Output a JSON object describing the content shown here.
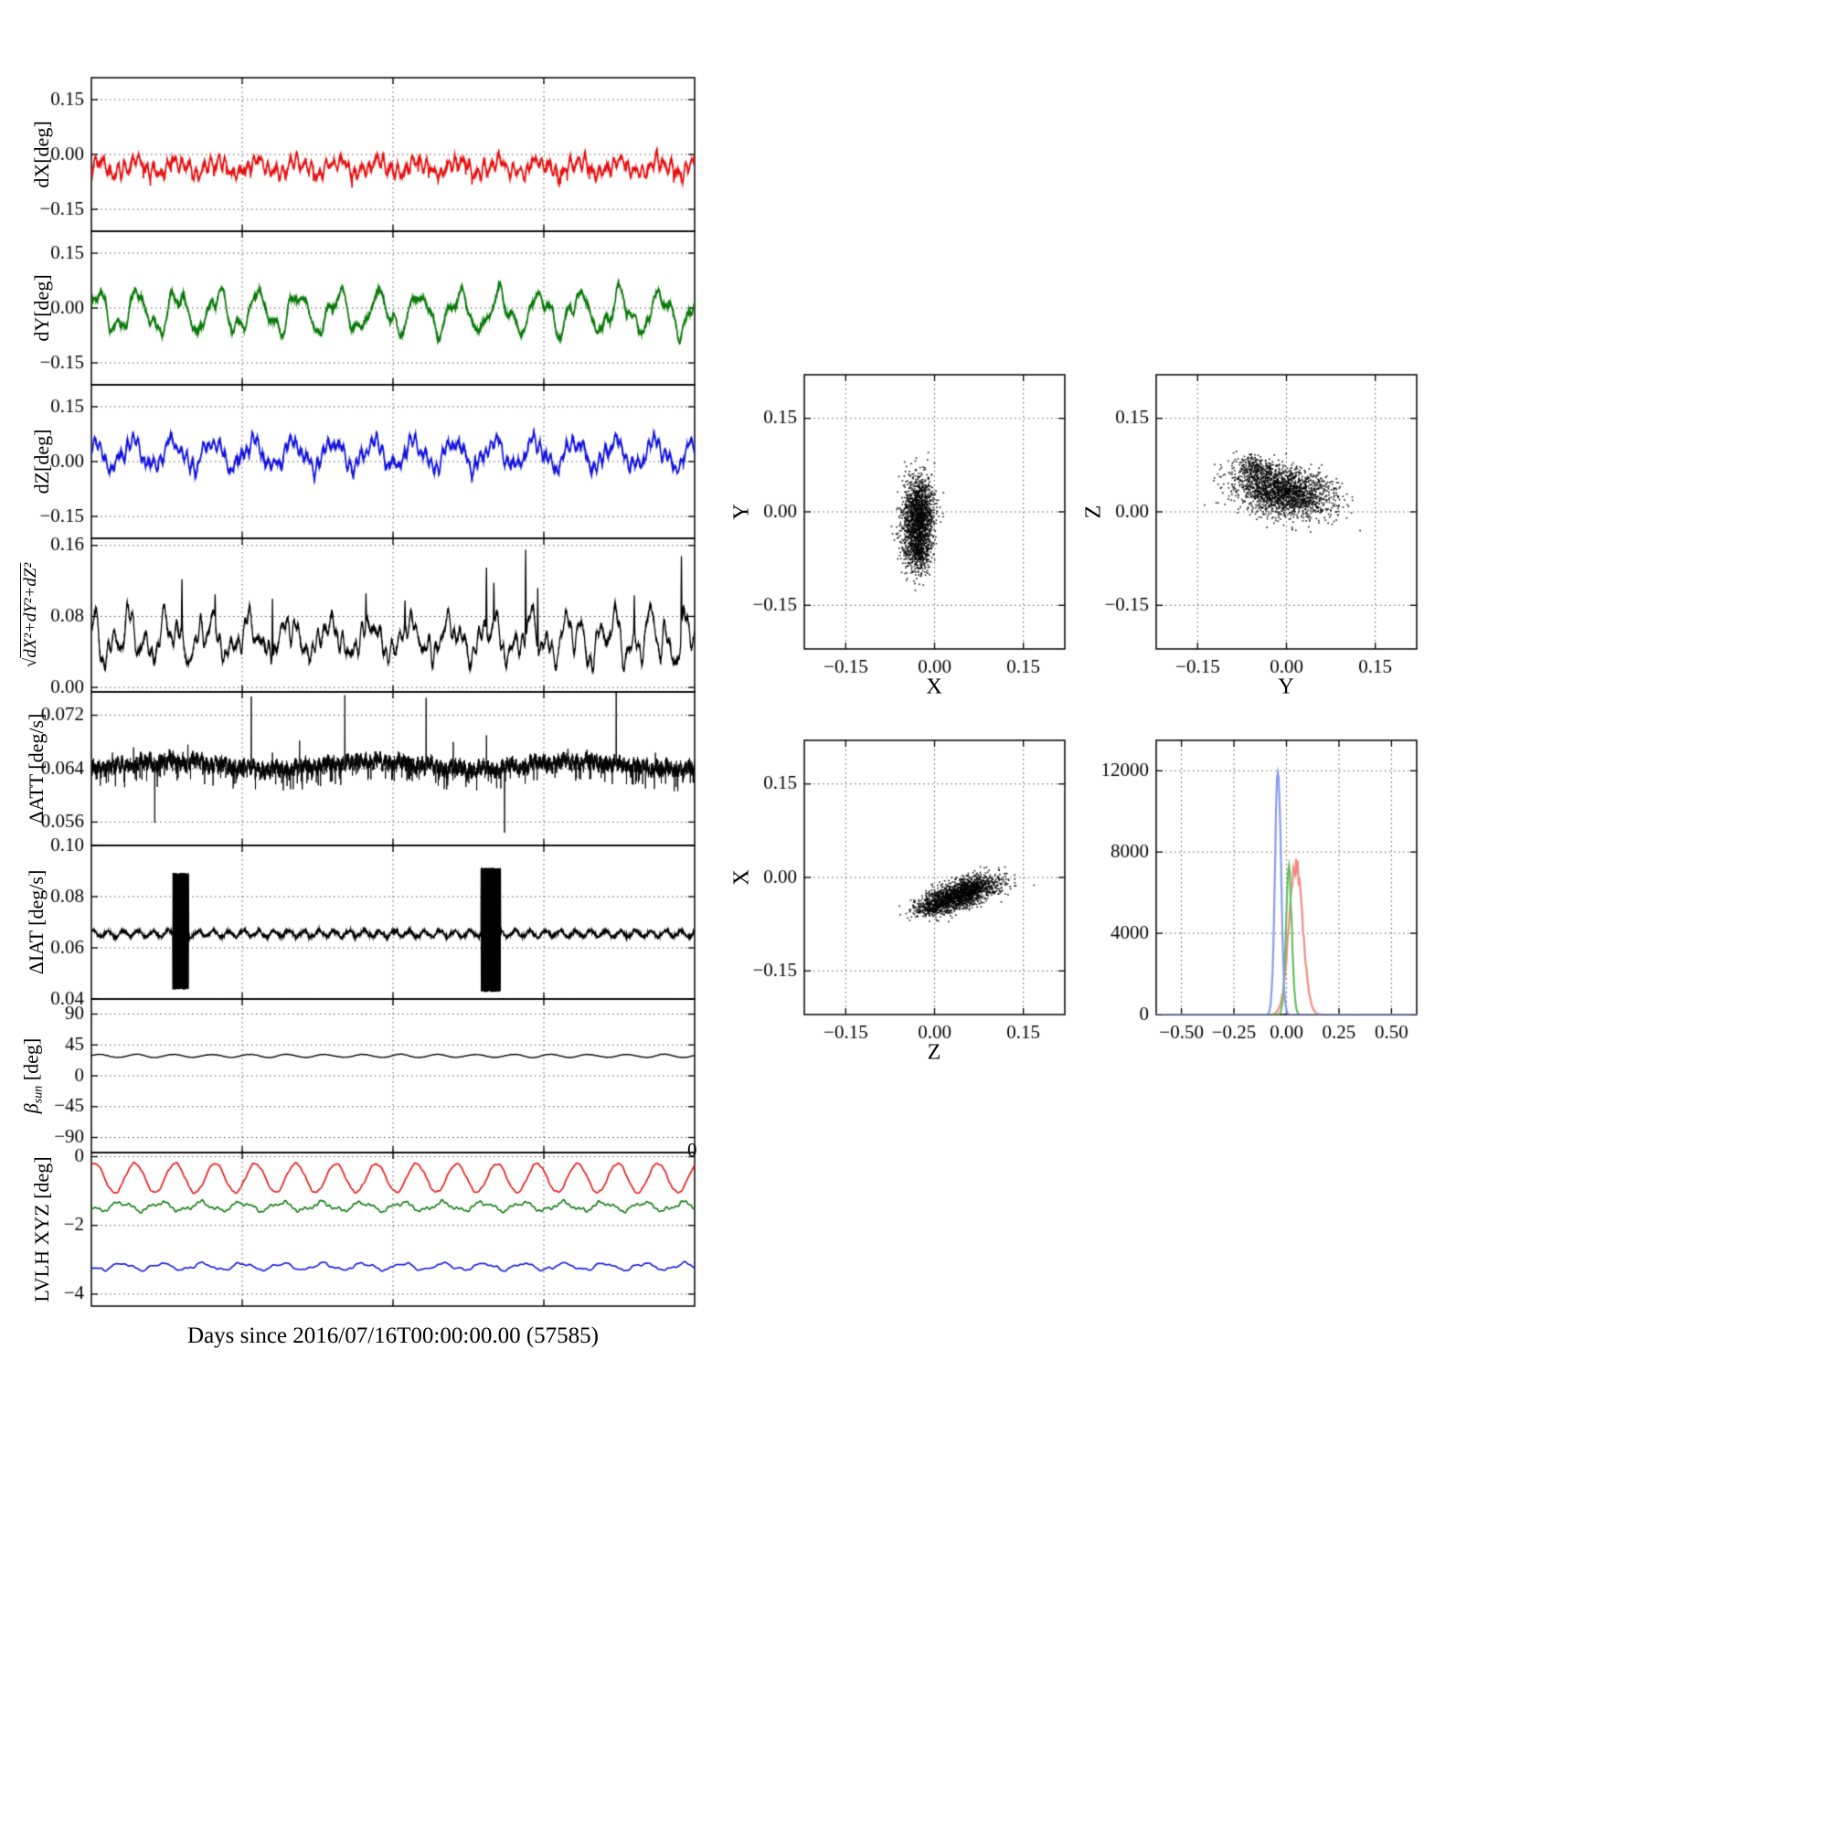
{
  "figure": {
    "xaxis_label": "Days since 2016/07/16T00:00:00.00 (57585)",
    "right_edge_tick_label": "0",
    "background": "#ffffff"
  },
  "chart_data": {
    "type": "multi-panel",
    "left_panels": [
      {
        "id": "dX",
        "type": "line",
        "ylabel": "dX[deg]",
        "ylim": [
          -0.21,
          0.21
        ],
        "yticks": [
          0.15,
          0,
          -0.15
        ],
        "ytick_labels": [
          "0.15",
          "0.00",
          "−0.15"
        ],
        "xgrid": [
          0.25,
          0.5,
          0.75
        ],
        "series": [
          {
            "name": "dX",
            "color": "#e81010",
            "lw": 1.7,
            "mean": -0.035,
            "amp": 0.016,
            "amp2": 0.007,
            "cycles": 15,
            "noise": 0.012,
            "jit": 0.008,
            "dropP": 0.006,
            "dropA": 0.025,
            "seed": 11
          }
        ]
      },
      {
        "id": "dY",
        "type": "line",
        "ylabel": "dY[deg]",
        "ylim": [
          -0.21,
          0.21
        ],
        "yticks": [
          0.15,
          0,
          -0.15
        ],
        "ytick_labels": [
          "0.15",
          "0.00",
          "−0.15"
        ],
        "xgrid": [
          0.25,
          0.5,
          0.75
        ],
        "series": [
          {
            "name": "dY",
            "color": "#0b7a0b",
            "lw": 1.7,
            "mean": -0.012,
            "amp": 0.048,
            "amp2": 0.016,
            "cycles": 15,
            "noise": 0.012,
            "jit": 0.008,
            "seed": 22
          }
        ]
      },
      {
        "id": "dZ",
        "type": "line",
        "ylabel": "dZ[deg]",
        "ylim": [
          -0.21,
          0.21
        ],
        "yticks": [
          0.15,
          0,
          -0.15
        ],
        "ytick_labels": [
          "0.15",
          "0.00",
          "−0.15"
        ],
        "xgrid": [
          0.25,
          0.5,
          0.75
        ],
        "series": [
          {
            "name": "dZ",
            "color": "#1212e0",
            "lw": 1.7,
            "mean": 0.02,
            "amp": 0.034,
            "amp2": 0.012,
            "cycles": 15,
            "noise": 0.013,
            "jit": 0.008,
            "seed": 33
          }
        ]
      },
      {
        "id": "dMag",
        "type": "line",
        "ylabel_sqrt": "√",
        "ylabel_radicand": "dX²+dY²+dZ²",
        "ylim": [
          -0.005,
          0.168
        ],
        "yticks": [
          0.16,
          0.08,
          0
        ],
        "ytick_labels": [
          "0.16",
          "0.08",
          "0.00"
        ],
        "xgrid": [
          0.25,
          0.5,
          0.75
        ],
        "series": [
          {
            "name": "magnitude",
            "color": "#000000",
            "lw": 1.3,
            "mean": 0.055,
            "amp": 0.016,
            "amp2": 0.009,
            "cycles": 15,
            "noise": 0.011,
            "jit": 0.006,
            "clampMin": 0.018,
            "spikes": [
              [
                0.15,
                0.122
              ],
              [
                0.205,
                0.105
              ],
              [
                0.3,
                0.1
              ],
              [
                0.455,
                0.106
              ],
              [
                0.52,
                0.098
              ],
              [
                0.655,
                0.135
              ],
              [
                0.667,
                0.118
              ],
              [
                0.72,
                0.155
              ],
              [
                0.74,
                0.112
              ],
              [
                0.9,
                0.104
              ],
              [
                0.978,
                0.148
              ]
            ],
            "seed": 44
          }
        ]
      },
      {
        "id": "dATT",
        "type": "line",
        "ylabel": "ΔATT [deg/s]",
        "ylim": [
          0.0525,
          0.0755
        ],
        "yticks": [
          0.072,
          0.064,
          0.056
        ],
        "ytick_labels": [
          "0.072",
          "0.064",
          "0.056"
        ],
        "xgrid": [
          0.25,
          0.5,
          0.75
        ],
        "series": [
          {
            "name": "ΔATT",
            "color": "#000000",
            "lw": 0.9,
            "n": 4200,
            "mean": 0.0645,
            "amp": 0.0006,
            "cycles": 3,
            "noise": 0.0005,
            "jit": 0.0022,
            "dropP": 0.05,
            "dropA": 0.0019,
            "spikes": [
              [
                0.035,
                0.0664
              ],
              [
                0.07,
                0.0672
              ],
              [
                0.105,
                0.0559
              ],
              [
                0.16,
                0.0676
              ],
              [
                0.205,
                0.066
              ],
              [
                0.265,
                0.0748
              ],
              [
                0.3,
                0.0664
              ],
              [
                0.345,
                0.0682
              ],
              [
                0.42,
                0.075
              ],
              [
                0.47,
                0.0666
              ],
              [
                0.555,
                0.0746
              ],
              [
                0.6,
                0.068
              ],
              [
                0.655,
                0.069
              ],
              [
                0.685,
                0.0544
              ],
              [
                0.735,
                0.0662
              ],
              [
                0.79,
                0.067
              ],
              [
                0.87,
                0.0757
              ],
              [
                0.935,
                0.0664
              ]
            ],
            "seed": 55
          }
        ]
      },
      {
        "id": "dIAT",
        "type": "line",
        "ylabel": "ΔIAT [deg/s]",
        "ylim": [
          0.04,
          0.1
        ],
        "yticks": [
          0.1,
          0.08,
          0.06,
          0.04
        ],
        "ytick_labels": [
          "0.10",
          "0.08",
          "0.06",
          "0.04"
        ],
        "xgrid": [
          0.25,
          0.5,
          0.75
        ],
        "series": [
          {
            "name": "ΔIAT",
            "color": "#000000",
            "lw": 1.3,
            "n": 3200,
            "mean": 0.0655,
            "amp": 0.0012,
            "cycles": 40,
            "noise": 0.0004,
            "jit": 0.0008,
            "bursts": [
              {
                "t": 0.148,
                "w": 0.013,
                "lo": 0.044,
                "hi": 0.089
              },
              {
                "t": 0.662,
                "w": 0.016,
                "lo": 0.043,
                "hi": 0.091
              }
            ],
            "seed": 66
          }
        ]
      },
      {
        "id": "betaSun",
        "type": "line",
        "ylabel_sym": "β",
        "ylabel_sub": "sun",
        "ylabel_unit": " [deg]",
        "ylim": [
          -112,
          112
        ],
        "yticks": [
          90,
          45,
          0,
          -45,
          -90
        ],
        "ytick_labels": [
          "90",
          "45",
          "0",
          "−45",
          "−90"
        ],
        "xgrid": [
          0.25,
          0.5,
          0.75
        ],
        "series": [
          {
            "name": "beta_sun",
            "color": "#000000",
            "lw": 1.4,
            "mean": 29,
            "amp": 2.2,
            "cycles": 16,
            "noise": 0.3,
            "seed": 77
          }
        ]
      },
      {
        "id": "lvlh",
        "type": "line",
        "ylabel": "LVLH XYZ [deg]",
        "ylim": [
          -4.35,
          0.12
        ],
        "yticks": [
          0,
          -2,
          -4
        ],
        "ytick_labels": [
          "0",
          "−2",
          "−4"
        ],
        "xgrid": [
          0.25,
          0.5,
          0.75
        ],
        "series": [
          {
            "name": "X",
            "color": "#e81010",
            "lw": 1.6,
            "mean": -0.62,
            "amp": 0.42,
            "cycles": 15,
            "noise": 0.02,
            "seed": 81
          },
          {
            "name": "Y",
            "color": "#0b7a0b",
            "lw": 1.6,
            "mean": -1.45,
            "amp": 0.11,
            "amp2": 0.05,
            "cycles": 15,
            "noise": 0.02,
            "seed": 82
          },
          {
            "name": "Z",
            "color": "#1212e0",
            "lw": 1.6,
            "mean": -3.2,
            "amp": 0.09,
            "amp2": 0.03,
            "cycles": 15,
            "noise": 0.015,
            "seed": 83
          }
        ]
      }
    ],
    "scatter_plots": [
      {
        "id": "Y-vs-X",
        "type": "scatter",
        "xlabel": "X",
        "ylabel": "Y",
        "xlim": [
          -0.22,
          0.22
        ],
        "ylim": [
          -0.22,
          0.22
        ],
        "xticks": [
          -0.15,
          0,
          0.15
        ],
        "xtick_labels": [
          "−0.15",
          "0.00",
          "0.15"
        ],
        "yticks": [
          -0.15,
          0,
          0.15
        ],
        "ytick_labels": [
          "−0.15",
          "0.00",
          "0.15"
        ],
        "clusters": [
          {
            "cx": -0.028,
            "cy": -0.012,
            "sx": 0.013,
            "sy": 0.035,
            "rho": 0.1,
            "n": 1700,
            "seed": 101
          },
          {
            "cx": -0.024,
            "cy": -0.068,
            "sx": 0.01,
            "sy": 0.014,
            "rho": 0,
            "n": 260,
            "seed": 102
          }
        ]
      },
      {
        "id": "Z-vs-Y",
        "type": "scatter",
        "xlabel": "Y",
        "ylabel": "Z",
        "xlim": [
          -0.22,
          0.22
        ],
        "ylim": [
          -0.22,
          0.22
        ],
        "xticks": [
          -0.15,
          0,
          0.15
        ],
        "xtick_labels": [
          "−0.15",
          "0.00",
          "0.15"
        ],
        "yticks": [
          -0.15,
          0,
          0.15
        ],
        "ytick_labels": [
          "−0.15",
          "0.00",
          "0.15"
        ],
        "clusters": [
          {
            "cx": -0.002,
            "cy": 0.032,
            "sx": 0.04,
            "sy": 0.02,
            "rho": -0.25,
            "n": 1900,
            "seed": 103
          },
          {
            "cx": -0.055,
            "cy": 0.07,
            "sx": 0.016,
            "sy": 0.012,
            "rho": -0.4,
            "n": 240,
            "seed": 104
          }
        ]
      },
      {
        "id": "X-vs-Z",
        "type": "scatter",
        "xlabel": "Z",
        "ylabel": "X",
        "xlim": [
          -0.22,
          0.22
        ],
        "ylim": [
          -0.22,
          0.22
        ],
        "xticks": [
          -0.15,
          0,
          0.15
        ],
        "xtick_labels": [
          "−0.15",
          "0.00",
          "0.15"
        ],
        "yticks": [
          -0.15,
          0,
          0.15
        ],
        "ytick_labels": [
          "−0.15",
          "0.00",
          "0.15"
        ],
        "clusters": [
          {
            "cx": 0.045,
            "cy": -0.026,
            "sx": 0.032,
            "sy": 0.014,
            "rho": 0.6,
            "n": 1800,
            "seed": 105
          },
          {
            "cx": 0.0,
            "cy": -0.048,
            "sx": 0.016,
            "sy": 0.007,
            "rho": 0.5,
            "n": 220,
            "seed": 106
          }
        ]
      }
    ],
    "histogram": {
      "id": "residual-histogram",
      "type": "line-histogram",
      "xlim": [
        -0.62,
        0.62
      ],
      "ylim": [
        0,
        13500
      ],
      "xticks": [
        -0.5,
        -0.25,
        0,
        0.25,
        0.5
      ],
      "xtick_labels": [
        "−0.50",
        "−0.25",
        "0.00",
        "0.25",
        "0.50"
      ],
      "yticks": [
        0,
        4000,
        8000,
        12000
      ],
      "ytick_labels": [
        "0",
        "4000",
        "8000",
        "12000"
      ],
      "series": [
        {
          "name": "dX",
          "color": "#f28b82",
          "mu": 0.045,
          "sigma": 0.032,
          "peak": 7400,
          "seed": 201
        },
        {
          "name": "dY",
          "color": "#63c063",
          "mu": 0.012,
          "sigma": 0.014,
          "peak": 6900,
          "seed": 202
        },
        {
          "name": "dZ",
          "color": "#8a9bf0",
          "mu": -0.04,
          "sigma": 0.014,
          "peak": 12550,
          "seed": 203
        }
      ]
    }
  }
}
